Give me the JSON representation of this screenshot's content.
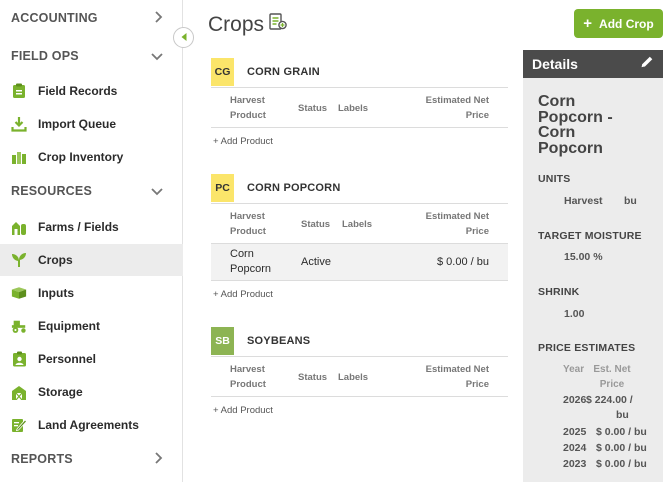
{
  "sidebar": {
    "sections": {
      "accounting": "ACCOUNTING",
      "field_ops": "FIELD OPS",
      "resources": "RESOURCES",
      "reports": "REPORTS"
    },
    "field_ops_items": [
      {
        "label": "Field Records",
        "icon": "clipboard-icon"
      },
      {
        "label": "Import Queue",
        "icon": "download-tray-icon"
      },
      {
        "label": "Crop Inventory",
        "icon": "silo-icon"
      }
    ],
    "resources_items": [
      {
        "label": "Farms / Fields",
        "icon": "farm-icon"
      },
      {
        "label": "Crops",
        "icon": "sprout-icon"
      },
      {
        "label": "Inputs",
        "icon": "box-icon"
      },
      {
        "label": "Equipment",
        "icon": "tractor-icon"
      },
      {
        "label": "Personnel",
        "icon": "id-badge-icon"
      },
      {
        "label": "Storage",
        "icon": "barn-icon"
      },
      {
        "label": "Land Agreements",
        "icon": "contract-icon"
      }
    ],
    "colors": {
      "icon_green": "#7ab22d",
      "active_bg": "#ececec"
    }
  },
  "header": {
    "title": "Crops",
    "add_crop_label": "Add Crop",
    "accent": "#7ab22d"
  },
  "table_headers": {
    "harvest": "Harvest",
    "product": "Product",
    "status": "Status",
    "labels": "Labels",
    "estimated_net": "Estimated Net",
    "price": "Price"
  },
  "add_product_label": "+ Add Product",
  "crops": [
    {
      "badge": "CG",
      "name": "CORN GRAIN",
      "badge_color": "#fbe56a",
      "products": []
    },
    {
      "badge": "PC",
      "name": "CORN POPCORN",
      "badge_color": "#fbe56a",
      "products": [
        {
          "name_line1": "Corn",
          "name_line2": "Popcorn",
          "status": "Active",
          "price": "$ 0.00 / bu"
        }
      ]
    },
    {
      "badge": "SB",
      "name": "SOYBEANS",
      "badge_color": "#8db453",
      "products": []
    }
  ],
  "details": {
    "header": "Details",
    "title_lines": [
      "Corn",
      "Popcorn -",
      "Corn",
      "Popcorn"
    ],
    "units_label": "UNITS",
    "units_harvest": "Harvest",
    "units_value": "bu",
    "moisture_label": "TARGET MOISTURE",
    "moisture_value": "15.00 %",
    "shrink_label": "SHRINK",
    "shrink_value": "1.00",
    "price_label": "PRICE ESTIMATES",
    "price_col_year": "Year",
    "price_col_est_net": "Est. Net",
    "price_col_price": "Price",
    "estimates": [
      {
        "year": "2026",
        "price_line1": "$ 224.00 /",
        "price_line2": "bu"
      },
      {
        "year": "2025",
        "price": "$ 0.00 / bu"
      },
      {
        "year": "2024",
        "price": "$ 0.00 / bu"
      },
      {
        "year": "2023",
        "price": "$ 0.00 / bu"
      }
    ]
  }
}
